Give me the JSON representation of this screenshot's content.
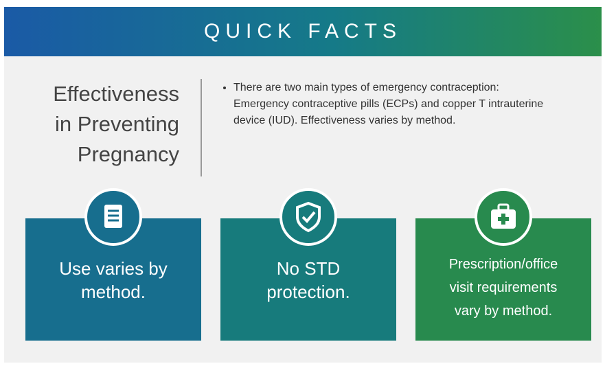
{
  "header": {
    "title": "QUICK FACTS"
  },
  "section": {
    "title_lines": [
      "Effectiveness",
      "in Preventing",
      "Pregnancy"
    ],
    "bullets": [
      "There are two main types of emergency contraception: Emergency contraceptive pills (ECPs) and copper T intrauterine device (IUD). Effectiveness varies by method."
    ]
  },
  "cards": [
    {
      "lines": [
        "Use varies by",
        "method."
      ]
    },
    {
      "lines": [
        "No STD",
        "protection."
      ]
    },
    {
      "lines": [
        "Prescription/office",
        "visit requirements",
        "vary by method."
      ]
    }
  ]
}
